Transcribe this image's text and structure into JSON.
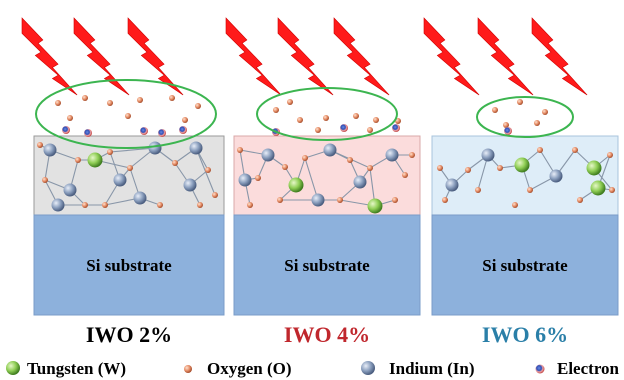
{
  "panels": [
    {
      "title": "IWO 2%",
      "title_color": "#000000",
      "film_color": "#e2e2e2",
      "substrate_label": "Si substrate"
    },
    {
      "title": "IWO 4%",
      "title_color": "#c0272d",
      "film_color": "#fbdcdc",
      "substrate_label": "Si substrate"
    },
    {
      "title": "IWO 6%",
      "title_color": "#2a7fa8",
      "film_color": "#deedf8",
      "substrate_label": "Si substrate"
    }
  ],
  "colors": {
    "substrate": "#8db1dc",
    "lightning": "#ff1a1a",
    "ellipse": "#3cb550",
    "tungsten": "#8fce55",
    "oxygen": "#e8906a",
    "indium": "#8ca0bf",
    "electron_outer": "#f0a0a0",
    "electron_inner": "#4060c0"
  },
  "legend": [
    {
      "label": "Tungsten (W)",
      "icon": "tungsten-sphere"
    },
    {
      "label": "Oxygen (O)",
      "icon": "oxygen-sphere"
    },
    {
      "label": "Indium (In)",
      "icon": "indium-sphere"
    },
    {
      "label": "Electron",
      "icon": "electron-sphere"
    }
  ]
}
